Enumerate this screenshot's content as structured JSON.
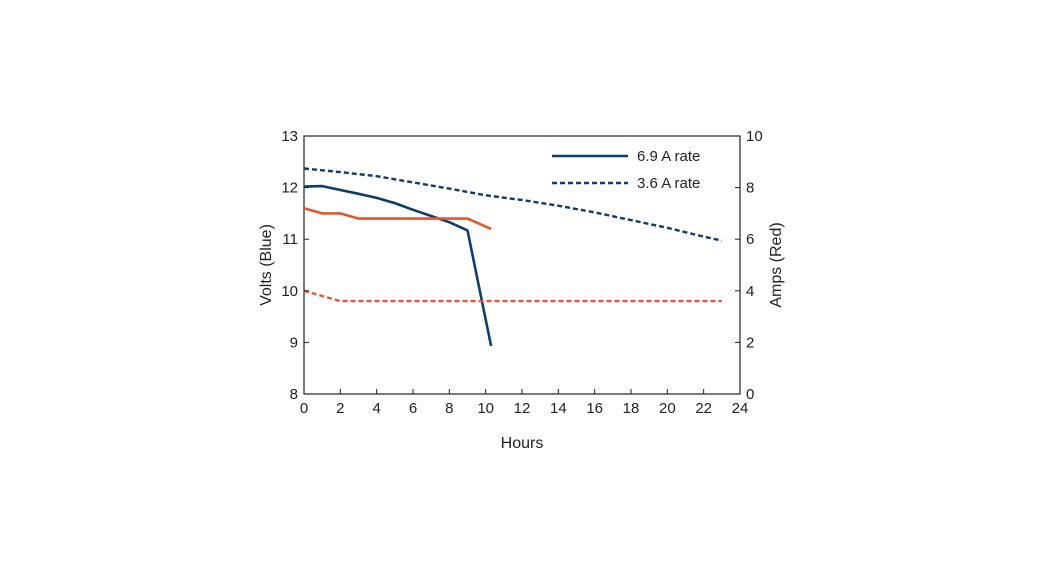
{
  "chart_data": {
    "type": "line",
    "xlabel": "Hours",
    "ylabel_left": "Volts (Blue)",
    "ylabel_right": "Amps (Red)",
    "xlim": [
      0,
      24
    ],
    "ylim_left": [
      8,
      13
    ],
    "ylim_right": [
      0,
      10
    ],
    "xticks": [
      0,
      2,
      4,
      6,
      8,
      10,
      12,
      14,
      16,
      18,
      20,
      22,
      24
    ],
    "yticks_left": [
      8,
      9,
      10,
      11,
      12,
      13
    ],
    "yticks_right": [
      0,
      2,
      4,
      6,
      8,
      10
    ],
    "grid": false,
    "legend": {
      "placement": "top-right",
      "entries": [
        "6.9 A rate",
        "3.6 A rate"
      ]
    },
    "colors": {
      "volts": "#0d3c6e",
      "amps": "#e8552a"
    },
    "series": [
      {
        "name": "6.9 A rate",
        "quantity": "volts",
        "axis": "left",
        "style": "solid",
        "x": [
          0,
          1,
          3,
          4,
          5,
          6,
          7,
          8,
          9,
          10.3
        ],
        "y": [
          12.02,
          12.03,
          11.88,
          11.8,
          11.7,
          11.57,
          11.45,
          11.33,
          11.17,
          8.93
        ]
      },
      {
        "name": "3.6 A rate",
        "quantity": "volts",
        "axis": "left",
        "style": "dashed",
        "x": [
          0,
          2,
          4,
          6,
          8,
          10,
          12,
          14,
          16,
          18,
          20,
          22,
          23
        ],
        "y": [
          12.37,
          12.3,
          12.22,
          12.1,
          11.98,
          11.85,
          11.76,
          11.65,
          11.52,
          11.37,
          11.22,
          11.05,
          10.97
        ]
      },
      {
        "name": "6.9 A rate",
        "quantity": "amps",
        "axis": "right",
        "style": "solid",
        "x": [
          0,
          1,
          2,
          3,
          4,
          5,
          6,
          7,
          8,
          9,
          10.3
        ],
        "y": [
          7.2,
          7.0,
          7.0,
          6.8,
          6.8,
          6.8,
          6.8,
          6.8,
          6.8,
          6.8,
          6.4
        ]
      },
      {
        "name": "3.6 A rate",
        "quantity": "amps",
        "axis": "right",
        "style": "dashed",
        "x": [
          0,
          1,
          2,
          3,
          23
        ],
        "y": [
          4.0,
          3.8,
          3.6,
          3.6,
          3.6
        ]
      }
    ]
  }
}
